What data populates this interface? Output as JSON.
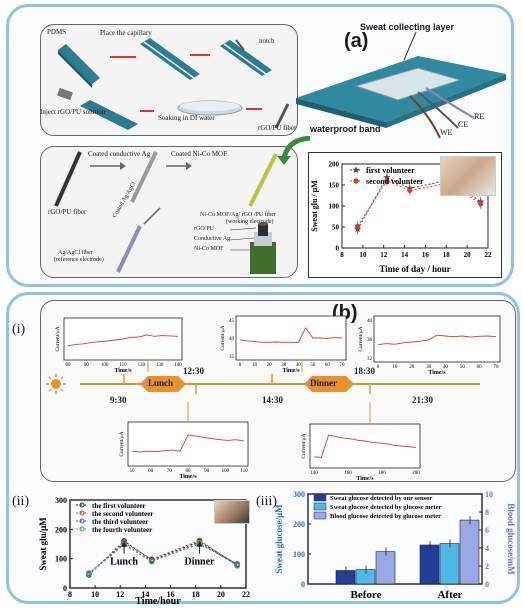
{
  "panel_a": {
    "label": "(a)",
    "fabrication": {
      "pdms": "PDMS",
      "place_capillary": "Place the capillary",
      "notch": "notch",
      "inject": "Inject rGO/PU solution",
      "soaking": "Soaking in DI water",
      "fiber": "rGO/PU fiber"
    },
    "electrode": {
      "coated_ag": "Coated conductive Ag",
      "coated_nico": "Coated Ni-Co MOF",
      "rgo_fiber": "rGO/PU fiber",
      "working": "Ni-Co MOF/Ag/ rGO /PU fiber",
      "working_sub": "(working electrode)",
      "coated_agcl": "Coated Ag/AgCl",
      "reference": "Ag/AgCl fiber",
      "reference_sub": "(reference electrode)",
      "layer1": "rGO/PU",
      "layer2": "Conductive Ag",
      "layer3": "Ni-Co MOF"
    },
    "device": {
      "sweat_layer": "Sweat collecting layer",
      "band": "waterproof band",
      "we": "WE",
      "ce": "CE",
      "re": "RE"
    }
  },
  "panel_b": {
    "label": "(b)",
    "sub_i": "(i)",
    "sub_ii": "(ii)",
    "sub_iii": "(iii)",
    "timeline": {
      "t1": "9:30",
      "meal1": "Lunch",
      "t2": "12:30",
      "t3": "14:30",
      "meal2": "Dinner",
      "t4": "18:30",
      "t5": "21:30"
    },
    "current_ylabel": "Current/μA",
    "time_xlabel": "Time/s",
    "lunch_note": "Lunch",
    "dinner_note": "Dinner"
  },
  "chart_data": [
    {
      "id": "a_sweat_glu",
      "type": "line",
      "xlabel": "Time of day / hour",
      "ylabel": "Sweat glu / μM",
      "xlim": [
        8,
        22
      ],
      "ylim": [
        0,
        200
      ],
      "xticks": [
        "8",
        "10",
        "12",
        "14",
        "16",
        "18",
        "20",
        "22"
      ],
      "yticks": [
        "0",
        "50",
        "100",
        "150",
        "200"
      ],
      "x": [
        9.5,
        12.3,
        14.5,
        18.3,
        21.3
      ],
      "series": [
        {
          "name": "first volunteer",
          "values": [
            45,
            168,
            142,
            162,
            110
          ],
          "color": "#444444"
        },
        {
          "name": "second volunteer",
          "values": [
            52,
            160,
            137,
            155,
            105
          ],
          "color": "#d83a2c"
        }
      ]
    },
    {
      "id": "b_current_panels",
      "type": "line",
      "panels": [
        {
          "xticks": [
            "80",
            "90",
            "100",
            "110",
            "120",
            "130",
            "140"
          ],
          "yticks": [],
          "values": [
            0.3,
            0.34,
            0.36,
            0.4,
            0.42,
            0.44,
            0.47,
            0.5,
            0.55,
            0.56,
            0.62,
            0.58,
            0.6,
            0.59,
            0.58
          ],
          "step_at": 9
        },
        {
          "xticks": [
            "0",
            "10",
            "20",
            "30",
            "40",
            "50",
            "60",
            "70"
          ],
          "yticks": [
            "35",
            "40",
            "45"
          ],
          "values": [
            0.45,
            0.42,
            0.4,
            0.38,
            0.38,
            0.39,
            0.38,
            0.38,
            0.37,
            0.78,
            0.5,
            0.5,
            0.49,
            0.51,
            0.5
          ],
          "step_at": 9
        },
        {
          "xticks": [
            "0",
            "10",
            "20",
            "30",
            "40",
            "50",
            "60",
            "70"
          ],
          "yticks": [
            "32",
            "36",
            "40"
          ],
          "values": [
            0.35,
            0.38,
            0.36,
            0.4,
            0.42,
            0.44,
            0.48,
            0.6,
            0.58,
            0.56,
            0.58,
            0.55,
            0.57,
            0.58,
            0.56
          ],
          "step_at": 7
        },
        {
          "xticks": [
            "50",
            "60",
            "70",
            "80",
            "90",
            "100",
            "110"
          ],
          "yticks": [],
          "values": [
            0.3,
            0.28,
            0.3,
            0.29,
            0.31,
            0.33,
            0.3,
            0.75,
            0.72,
            0.68,
            0.65,
            0.62,
            0.6,
            0.62,
            0.58
          ],
          "step_at": 7
        },
        {
          "xticks": [
            "140",
            "160",
            "180",
            "200"
          ],
          "yticks": [],
          "values": [
            0.2,
            0.18,
            0.8,
            0.76,
            0.72,
            0.7,
            0.66,
            0.64,
            0.6,
            0.58,
            0.56,
            0.52,
            0.5,
            0.48,
            0.46
          ],
          "step_at": 2
        }
      ]
    },
    {
      "id": "b_ii_sweat_glu",
      "type": "line",
      "xlabel": "Time/hour",
      "ylabel": "Sweat glu/μM",
      "xlim": [
        8,
        22
      ],
      "ylim": [
        0,
        300
      ],
      "xticks": [
        "8",
        "10",
        "12",
        "14",
        "16",
        "18",
        "20",
        "22"
      ],
      "yticks": [
        "0",
        "100",
        "200",
        "300"
      ],
      "x": [
        9.5,
        12.3,
        14.5,
        18.3,
        21.3
      ],
      "series": [
        {
          "name": "the first volunteer",
          "values": [
            45,
            160,
            95,
            158,
            80
          ],
          "color": "#222222"
        },
        {
          "name": "the second volunteer",
          "values": [
            48,
            155,
            98,
            162,
            78
          ],
          "color": "#d83a2c"
        },
        {
          "name": "the third volunteer",
          "values": [
            50,
            150,
            92,
            150,
            82
          ],
          "color": "#3a55c8"
        },
        {
          "name": "the fourth volunteer",
          "values": [
            47,
            148,
            90,
            155,
            76
          ],
          "color": "#3fae3f"
        }
      ]
    },
    {
      "id": "b_iii_bar",
      "type": "bar",
      "categories": [
        "Before",
        "After"
      ],
      "ylabel": "Sweat glucose/μM",
      "y2label": "Blood glucose/mM",
      "ylim": [
        0,
        300
      ],
      "y2lim": [
        0,
        10
      ],
      "yticks": [
        "0",
        "100",
        "200",
        "300"
      ],
      "y2ticks": [
        "0",
        "2",
        "4",
        "6",
        "8",
        "10"
      ],
      "series": [
        {
          "name": "Sweat glucose detected by our sensor",
          "values": [
            45,
            130
          ],
          "color": "#1f3f9a"
        },
        {
          "name": "Sweat glucose detected by glucose meter",
          "values": [
            48,
            135
          ],
          "color": "#4fb8e8"
        },
        {
          "name": "Blood glucose detected by glucose meter",
          "values": [
            3.6,
            7.1
          ],
          "axis": "right",
          "color": "#9aa8e6"
        }
      ]
    }
  ]
}
